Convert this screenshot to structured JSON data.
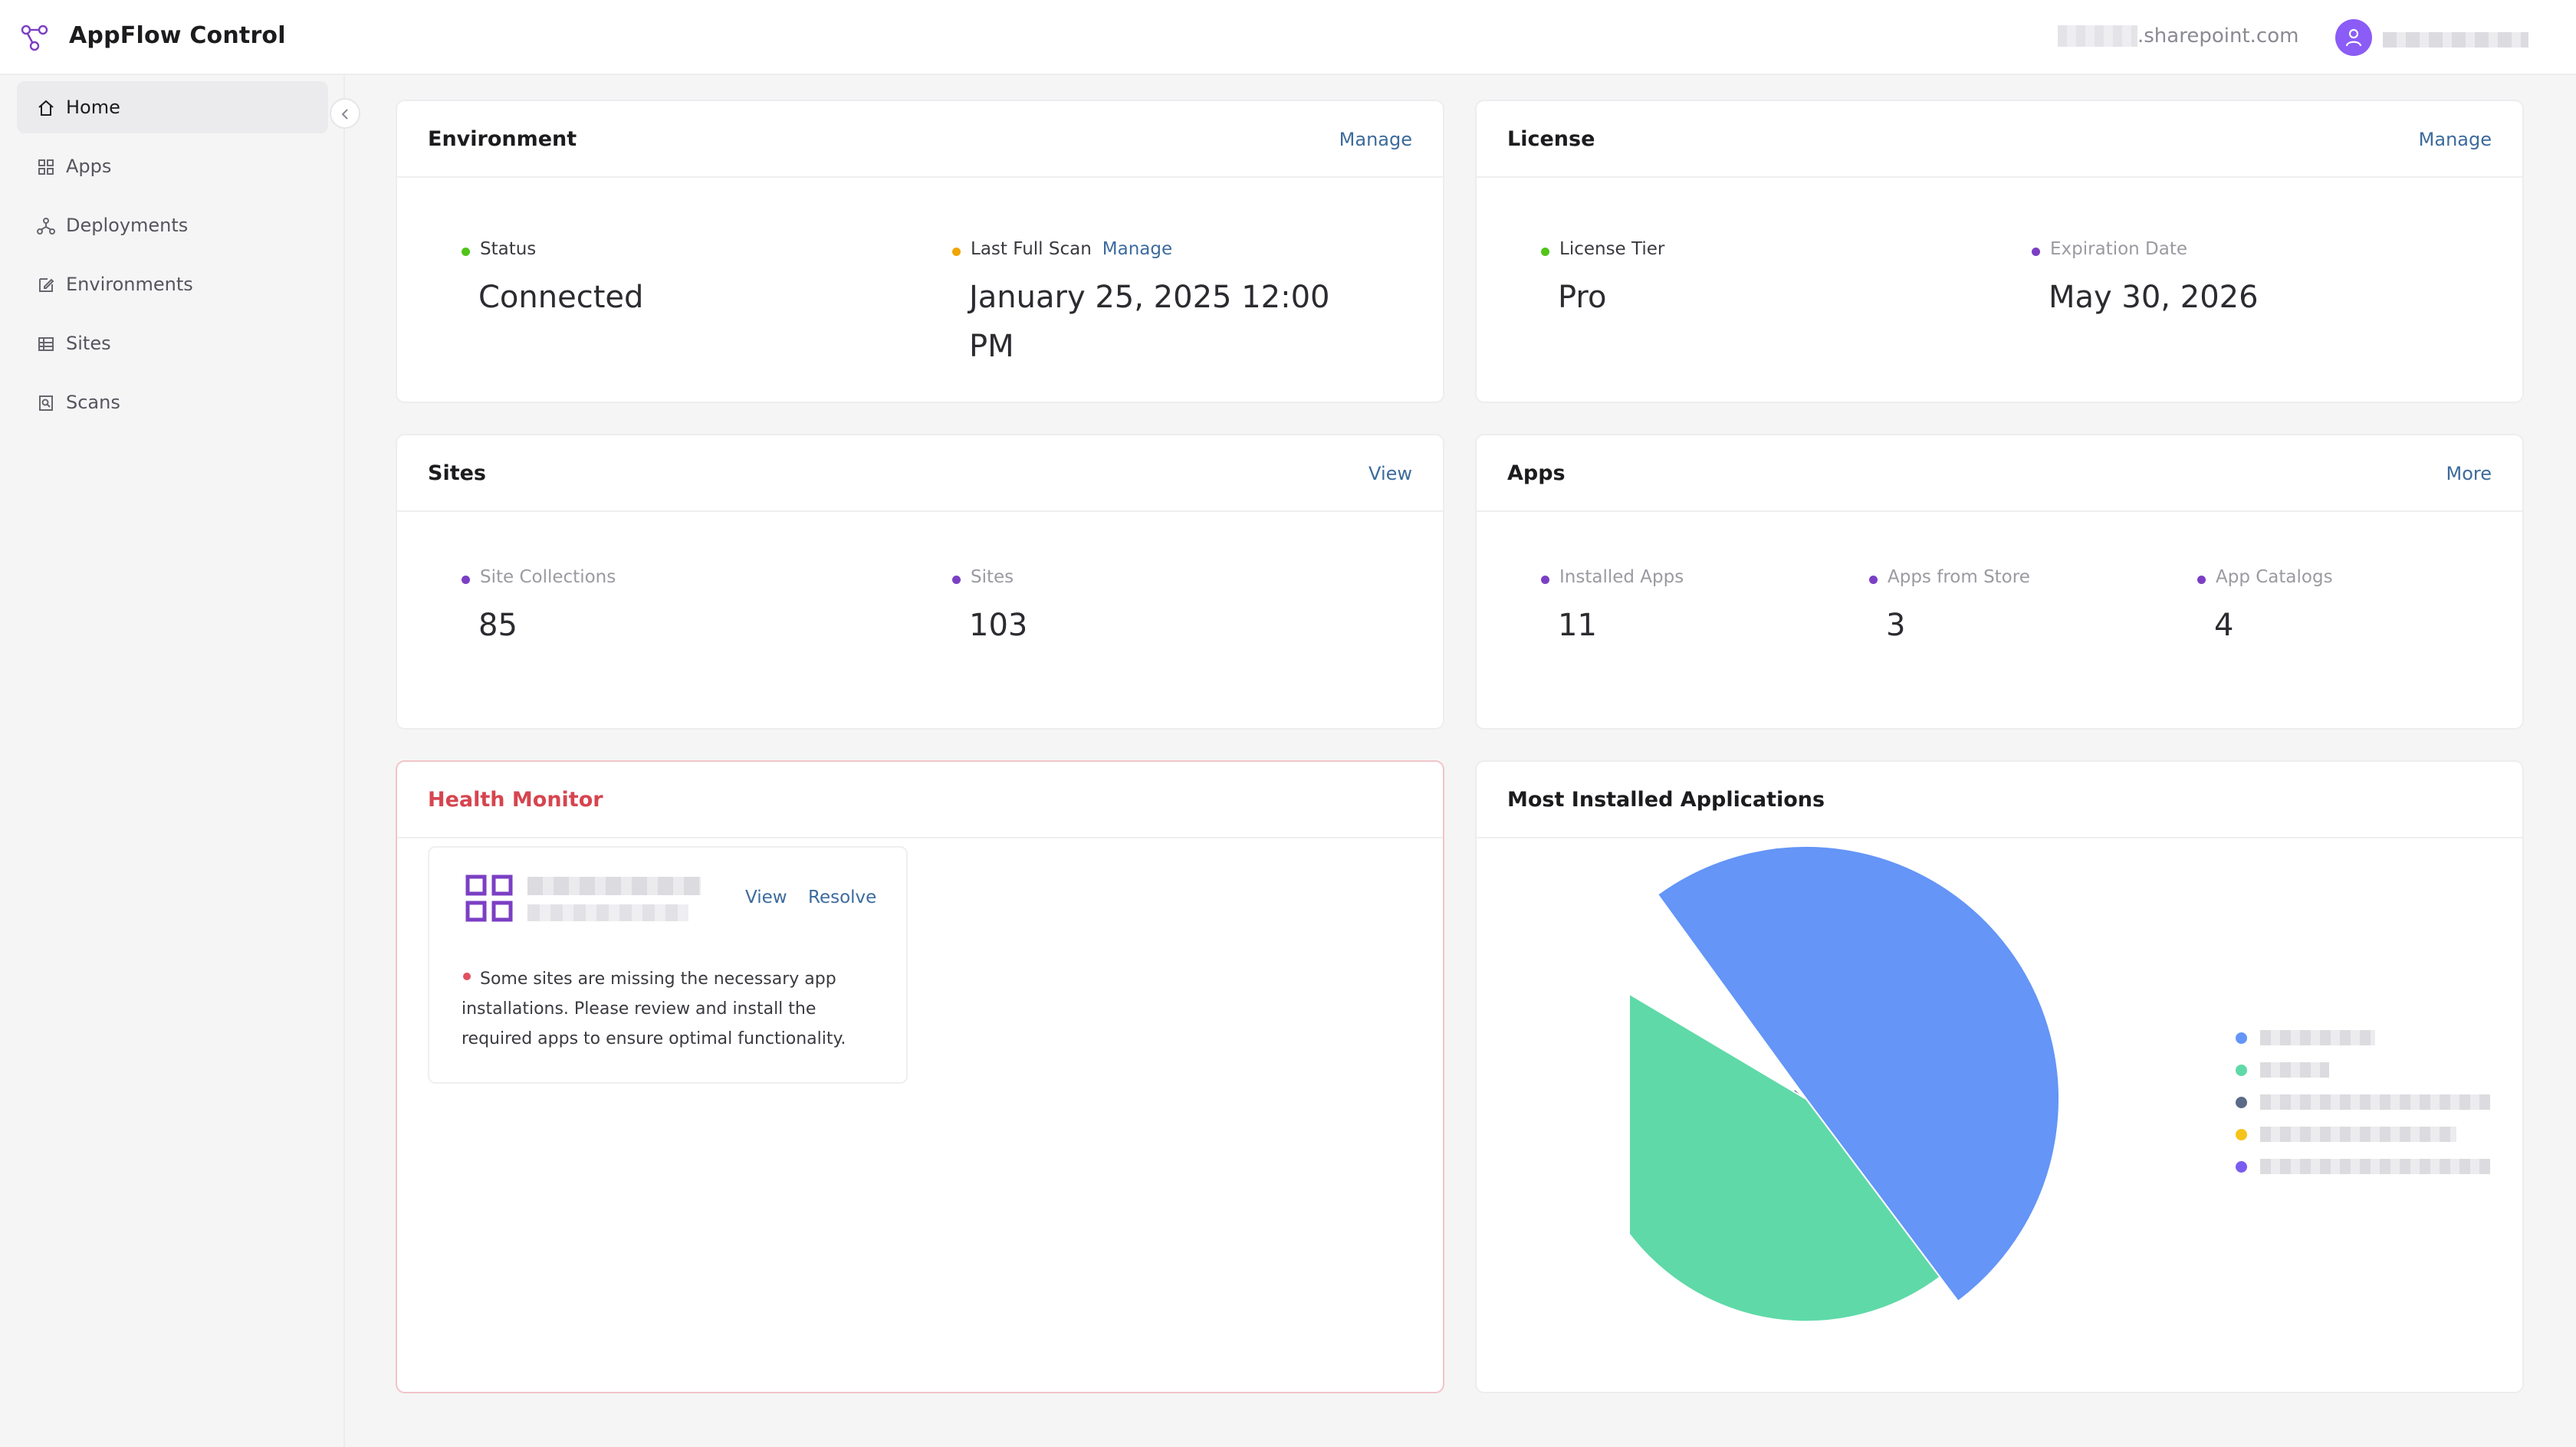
{
  "app": {
    "title": "AppFlow Control",
    "tenant_domain": ".sharepoint.com"
  },
  "sidebar": {
    "items": [
      {
        "label": "Home",
        "icon": "home-icon",
        "active": true
      },
      {
        "label": "Apps",
        "icon": "grid-icon"
      },
      {
        "label": "Deployments",
        "icon": "network-icon"
      },
      {
        "label": "Environments",
        "icon": "edit-icon"
      },
      {
        "label": "Sites",
        "icon": "table-icon"
      },
      {
        "label": "Scans",
        "icon": "scan-icon"
      }
    ]
  },
  "environment": {
    "title": "Environment",
    "action": "Manage",
    "status_label": "Status",
    "status_value": "Connected",
    "scan_label": "Last Full Scan",
    "scan_action": "Manage",
    "scan_value_line1": "January 25, 2025 12:00",
    "scan_value_line2": "PM"
  },
  "license": {
    "title": "License",
    "action": "Manage",
    "tier_label": "License Tier",
    "tier_value": "Pro",
    "expiration_label": "Expiration Date",
    "expiration_value": "May 30, 2026"
  },
  "sites": {
    "title": "Sites",
    "action": "View",
    "collections_label": "Site Collections",
    "collections_value": "85",
    "sites_label": "Sites",
    "sites_value": "103"
  },
  "apps": {
    "title": "Apps",
    "action": "More",
    "installed_label": "Installed Apps",
    "installed_value": "11",
    "store_label": "Apps from Store",
    "store_value": "3",
    "catalogs_label": "App Catalogs",
    "catalogs_value": "4"
  },
  "health": {
    "title": "Health Monitor",
    "view": "View",
    "resolve": "Resolve",
    "message": "Some sites are missing the necessary app installations. Please review and install the required apps to ensure optimal functionality."
  },
  "most_installed": {
    "title": "Most Installed Applications"
  },
  "colors": {
    "green_dot": "#52c41a",
    "amber_dot": "#f0a500",
    "purple_dot": "#7b3fc4",
    "red_dot": "#e0505e",
    "link": "#3c6b9c",
    "alert_title": "#d64550"
  },
  "chart_data": {
    "type": "pie",
    "variant": "nightingale-rose",
    "legend_placement": "right",
    "series": [
      {
        "value": 100,
        "color": "#6495f7"
      },
      {
        "value": 88,
        "color": "#5fd9a8"
      },
      {
        "value": 6,
        "color": "#5b6b87"
      },
      {
        "value": 4,
        "color": "#f5c319"
      },
      {
        "value": 3,
        "color": "#7a5cf0"
      }
    ]
  }
}
